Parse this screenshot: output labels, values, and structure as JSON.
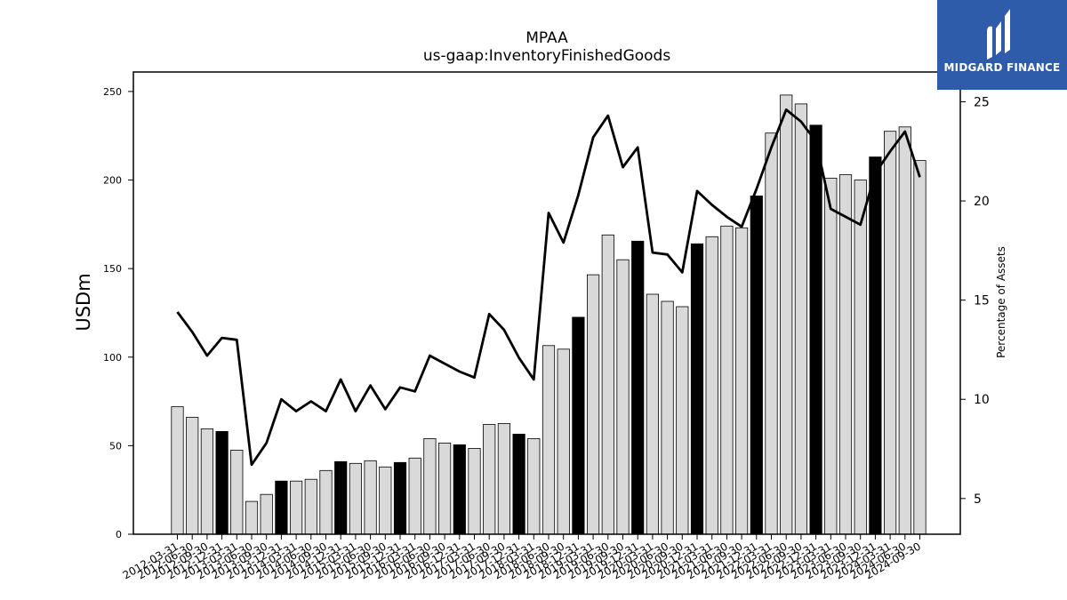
{
  "logo": {
    "text": "MIDGARD FINANCE",
    "background": "#2f5bab"
  },
  "chart_data": {
    "type": "bar",
    "title": "MPAA",
    "subtitle": "us-gaap:InventoryFinishedGoods",
    "ylabel": "USDm",
    "y2label": "Percentage of Assets",
    "ylim": [
      0,
      261
    ],
    "y2lim": [
      3.2,
      26.5
    ],
    "yticks": [
      0,
      50,
      100,
      150,
      200,
      250
    ],
    "y2ticks": [
      5,
      10,
      15,
      20,
      25
    ],
    "grid": false,
    "categories": [
      "2012-03-31",
      "2012-06-30",
      "2012-09-30",
      "2012-12-31",
      "2013-03-31",
      "2013-06-30",
      "2013-09-30",
      "2013-12-31",
      "2014-03-31",
      "2014-06-30",
      "2014-09-30",
      "2014-12-31",
      "2015-03-31",
      "2015-06-30",
      "2015-09-30",
      "2015-12-31",
      "2016-03-31",
      "2016-06-30",
      "2016-09-30",
      "2016-12-31",
      "2017-03-31",
      "2017-06-30",
      "2017-09-30",
      "2017-12-31",
      "2018-03-31",
      "2018-06-30",
      "2018-09-30",
      "2018-12-31",
      "2019-03-31",
      "2019-06-30",
      "2019-09-30",
      "2019-12-31",
      "2020-03-31",
      "2020-06-30",
      "2020-09-30",
      "2020-12-31",
      "2021-03-31",
      "2021-06-30",
      "2021-09-30",
      "2021-12-31",
      "2022-03-31",
      "2022-06-30",
      "2022-09-30",
      "2022-12-31",
      "2023-03-31",
      "2023-06-30",
      "2023-09-30",
      "2023-12-31",
      "2024-03-31",
      "2024-06-30",
      "2024-09-30"
    ],
    "series": [
      {
        "type": "bar",
        "values": [
          72,
          66,
          59.5,
          58,
          47.5,
          18.5,
          22.5,
          30,
          30,
          31,
          36,
          41,
          40,
          41.5,
          38,
          40.5,
          43,
          54,
          51.5,
          50.5,
          48.5,
          62,
          62.5,
          56.5,
          54,
          106.5,
          104.5,
          122.5,
          146.5,
          169,
          155,
          165.5,
          135.5,
          131.5,
          128.5,
          164,
          168,
          174,
          173,
          191,
          226.5,
          248,
          243,
          231,
          201,
          203,
          200,
          213,
          227.5,
          230,
          211
        ],
        "highlight_every": 4,
        "highlight_start": 3,
        "fill": "#d9d9d9",
        "highlight_fill": "#000000"
      },
      {
        "type": "line",
        "axis": "right",
        "values": [
          14.4,
          13.4,
          12.2,
          13.1,
          13,
          6.7,
          7.8,
          10,
          9.4,
          9.9,
          9.4,
          11,
          9.4,
          10.7,
          9.5,
          10.6,
          10.4,
          12.2,
          11.8,
          11.4,
          11.1,
          14.3,
          13.5,
          12.1,
          11,
          19.4,
          17.9,
          20.3,
          23.2,
          24.3,
          21.7,
          22.7,
          17.4,
          17.3,
          16.4,
          20.5,
          19.8,
          19.2,
          18.7,
          20.6,
          22.7,
          24.6,
          24,
          23,
          19.6,
          19.2,
          18.8,
          21.4,
          22.5,
          23.5,
          21.2
        ],
        "color": "#000000"
      }
    ]
  }
}
